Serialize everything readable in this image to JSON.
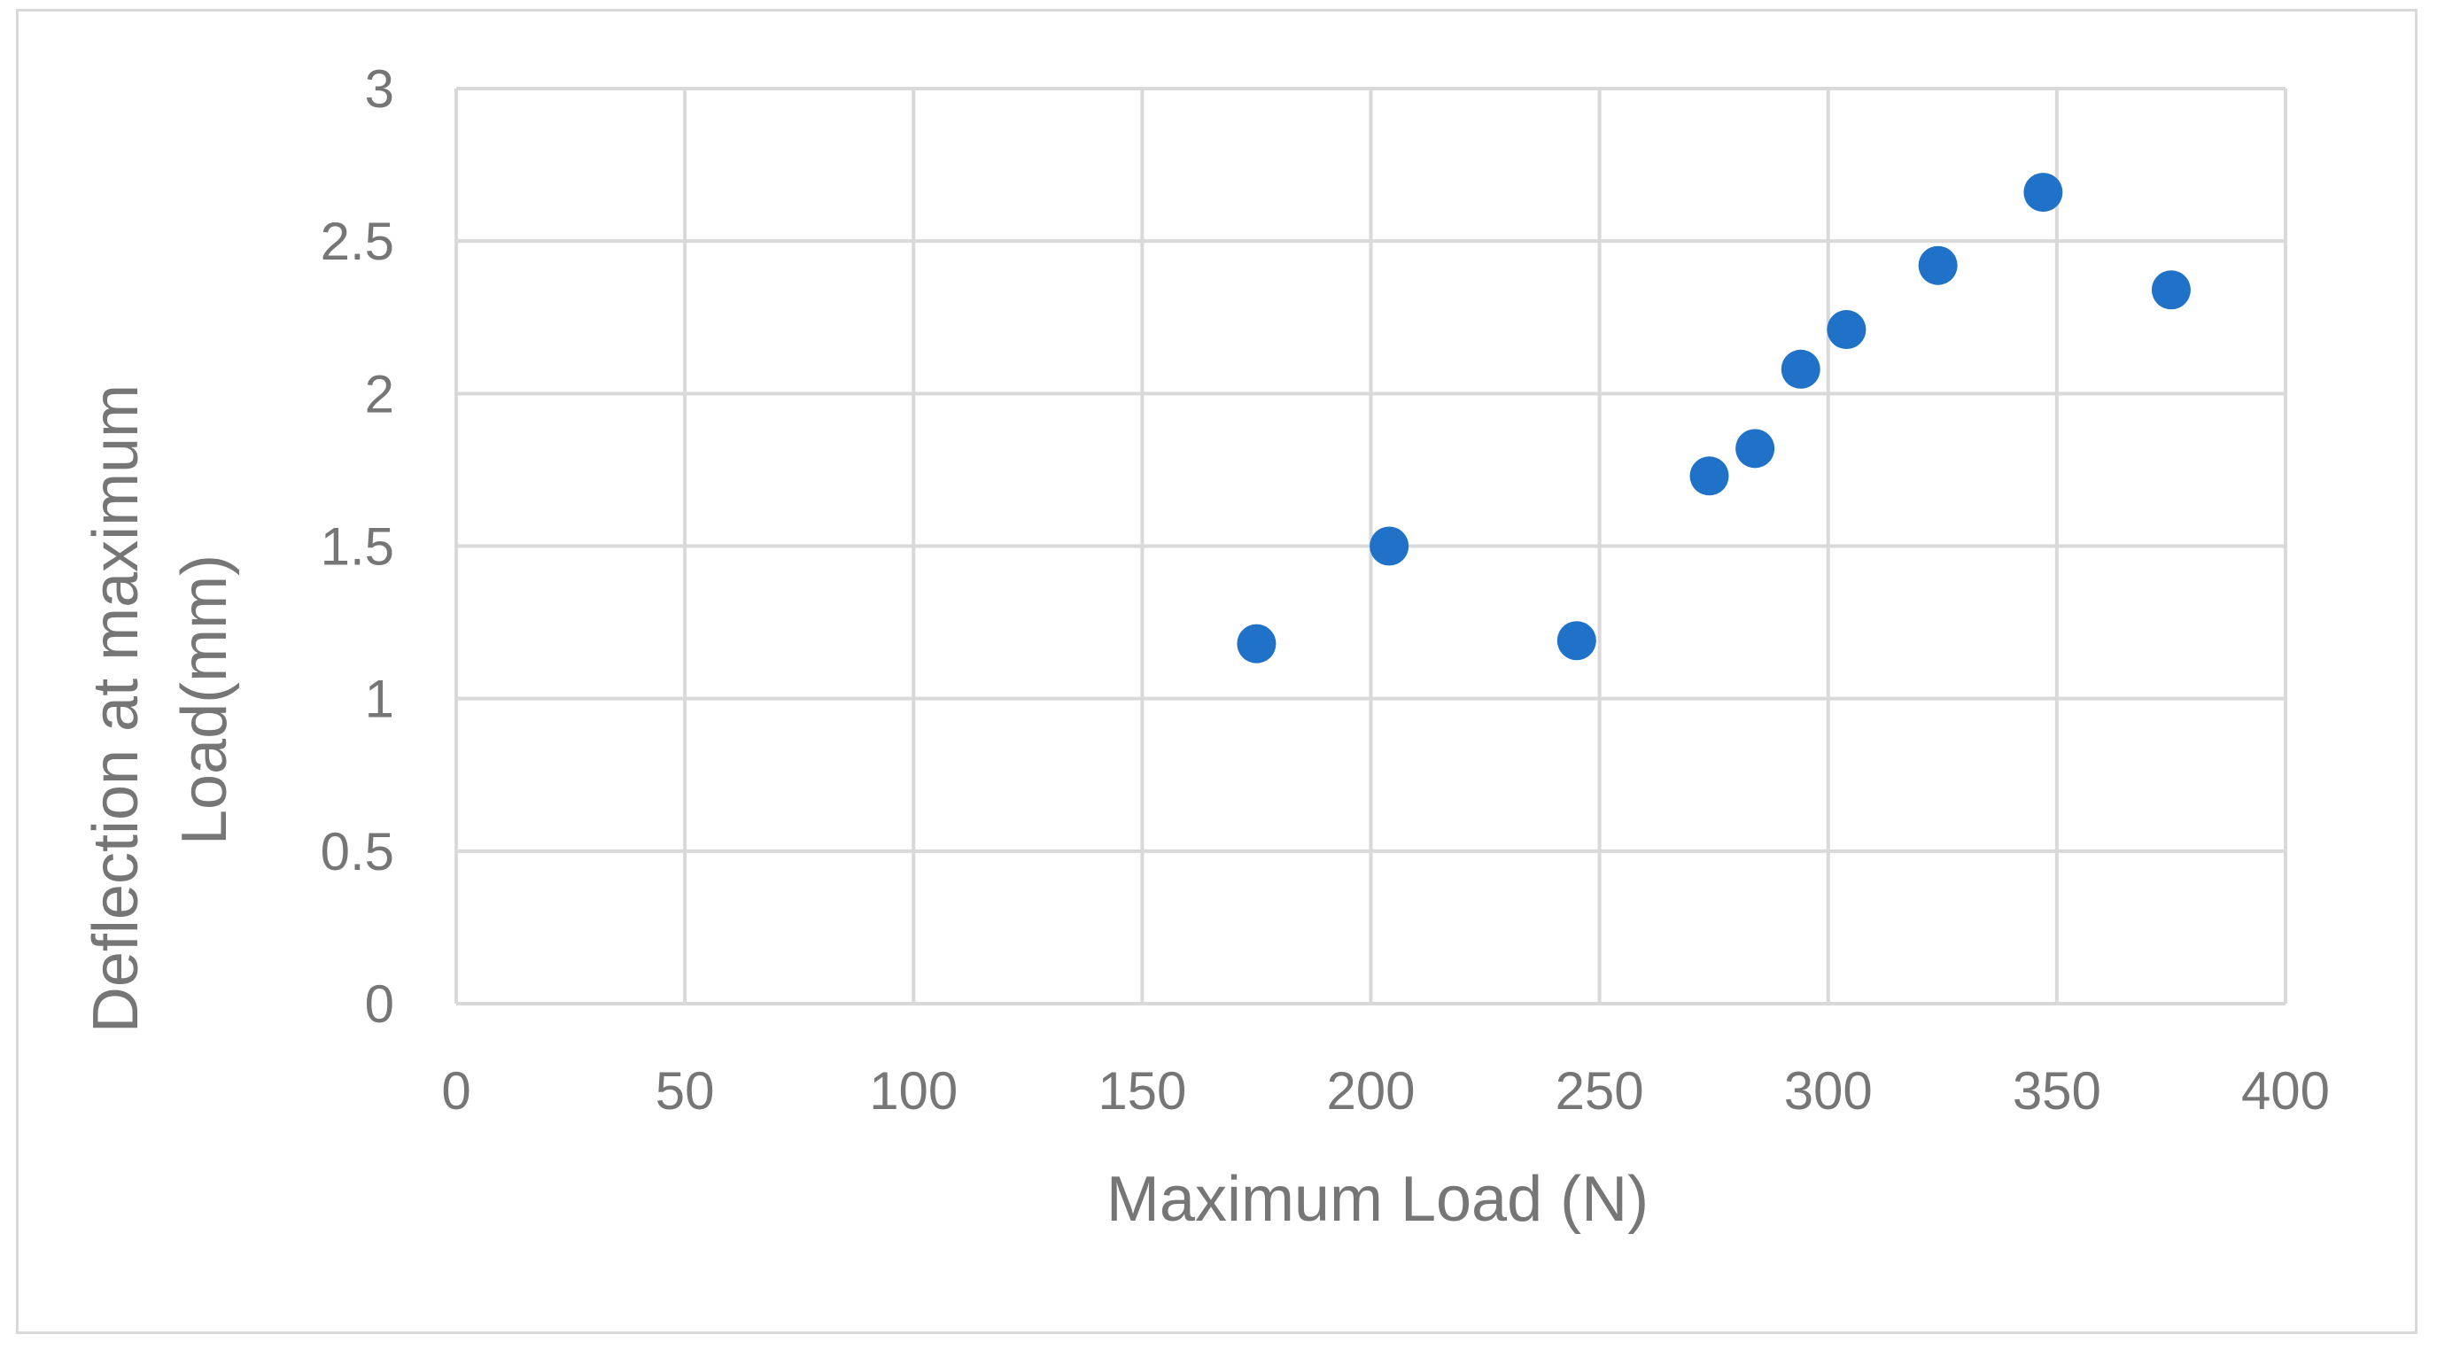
{
  "chart_data": {
    "type": "scatter",
    "title": "",
    "xlabel": "Maximum Load (N)",
    "ylabel_lines": [
      "Deflection at maximum",
      "Load(mm)"
    ],
    "xlim": [
      0,
      400
    ],
    "ylim": [
      0,
      3
    ],
    "x_ticks": [
      0,
      50,
      100,
      150,
      200,
      250,
      300,
      350,
      400
    ],
    "y_ticks": [
      0,
      0.5,
      1,
      1.5,
      2,
      2.5,
      3
    ],
    "grid": true,
    "legend": "none",
    "marker_color": "#1f72c8",
    "series": [
      {
        "points": [
          {
            "x": 175,
            "y": 1.18
          },
          {
            "x": 204,
            "y": 1.5
          },
          {
            "x": 245,
            "y": 1.19
          },
          {
            "x": 274,
            "y": 1.73
          },
          {
            "x": 284,
            "y": 1.82
          },
          {
            "x": 294,
            "y": 2.08
          },
          {
            "x": 304,
            "y": 2.21
          },
          {
            "x": 324,
            "y": 2.42
          },
          {
            "x": 347,
            "y": 2.66
          },
          {
            "x": 375,
            "y": 2.34
          }
        ]
      }
    ]
  }
}
